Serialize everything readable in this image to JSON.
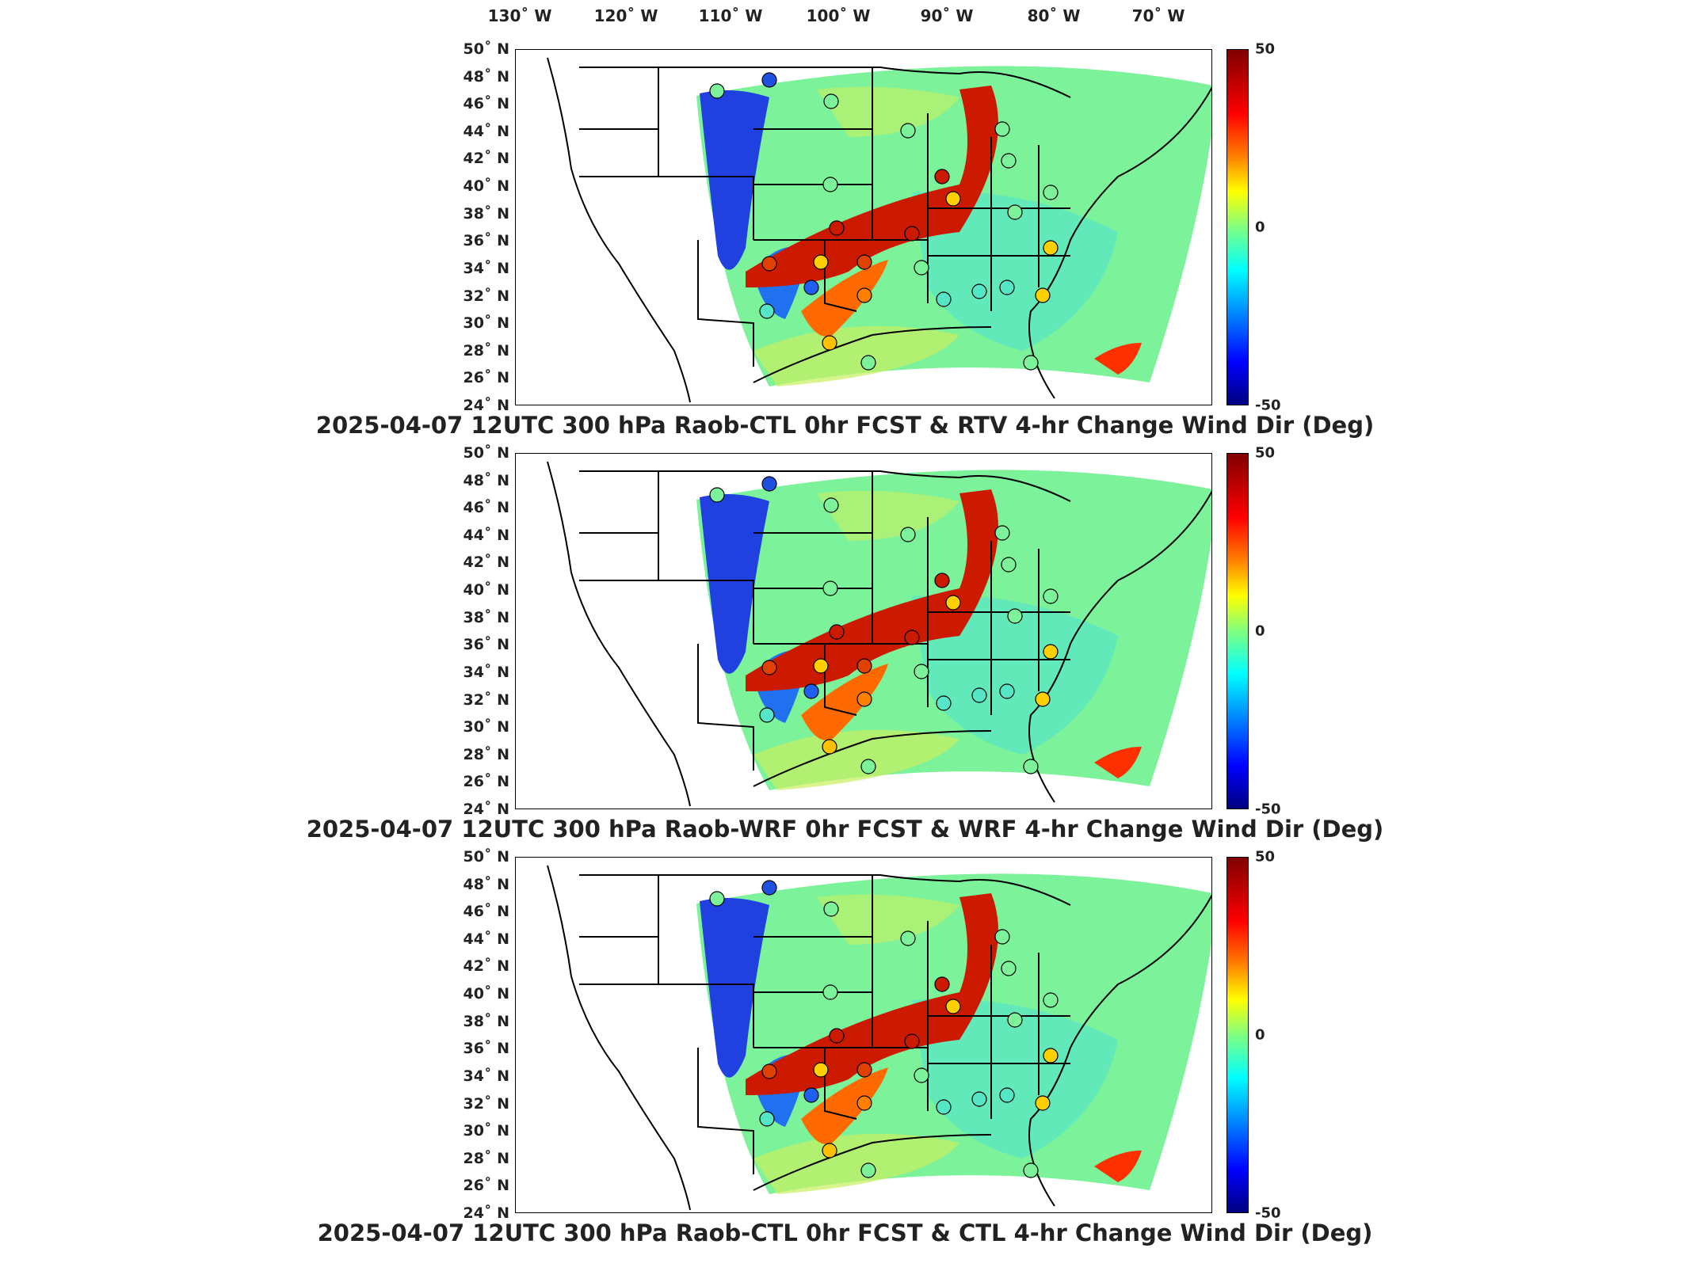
{
  "longitude_labels": [
    "130˚ W",
    "120˚ W",
    "110˚ W",
    "100˚ W",
    "90˚ W",
    "80˚ W",
    "70˚ W"
  ],
  "latitude_labels": [
    "50˚ N",
    "48˚ N",
    "46˚ N",
    "44˚ N",
    "42˚ N",
    "40˚ N",
    "38˚ N",
    "36˚ N",
    "34˚ N",
    "32˚ N",
    "30˚ N",
    "28˚ N",
    "26˚ N",
    "24˚ N"
  ],
  "colorbar": {
    "max_label": "50",
    "mid_label": "0",
    "min_label": "-50",
    "range": [
      -50,
      50
    ],
    "colormap": "jet"
  },
  "panels": [
    {
      "title": "2025-04-07 12UTC 300 hPa Raob-CTL 0hr FCST & RTV 4-hr Change Wind Dir (Deg)"
    },
    {
      "title": "2025-04-07 12UTC 300 hPa Raob-WRF 0hr FCST & WRF 4-hr Change Wind Dir (Deg)"
    },
    {
      "title": "2025-04-07 12UTC 300 hPa Raob-CTL 0hr FCST & CTL 4-hr Change Wind Dir (Deg)"
    }
  ],
  "colors": {
    "domain_background": "#7cf29a",
    "red_band": "#cc1a00",
    "blue_band": "#1a3ce6"
  }
}
